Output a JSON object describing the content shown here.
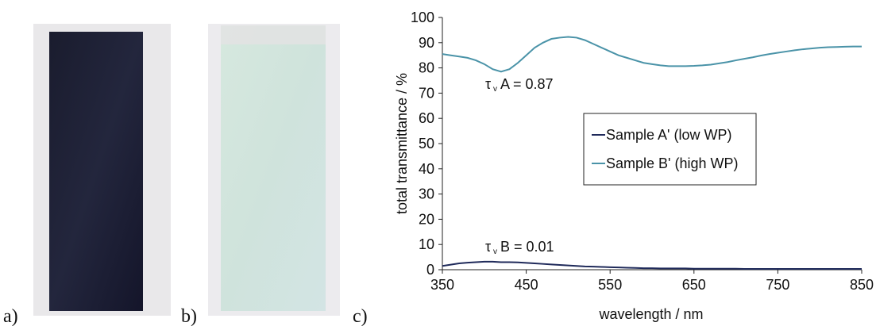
{
  "panel_labels": [
    "a)",
    "b)",
    "c)"
  ],
  "chart_data": {
    "type": "line",
    "xlabel": "wavelength / nm",
    "ylabel": "total transmittance / %",
    "x": [
      350,
      360,
      370,
      380,
      390,
      400,
      410,
      420,
      430,
      440,
      450,
      460,
      470,
      480,
      490,
      500,
      510,
      520,
      530,
      540,
      550,
      560,
      570,
      580,
      590,
      600,
      610,
      620,
      630,
      640,
      650,
      660,
      670,
      680,
      690,
      700,
      710,
      720,
      730,
      740,
      750,
      760,
      770,
      780,
      790,
      800,
      810,
      820,
      830,
      840,
      850
    ],
    "series": [
      {
        "name": "Sample A' (low WP)",
        "color": "#1f2a5a",
        "values": [
          1.5,
          2,
          2.5,
          2.8,
          3,
          3.2,
          3.2,
          3,
          3,
          2.9,
          2.7,
          2.5,
          2.3,
          2.1,
          1.9,
          1.7,
          1.5,
          1.3,
          1.2,
          1.1,
          1,
          0.9,
          0.8,
          0.7,
          0.6,
          0.6,
          0.5,
          0.5,
          0.5,
          0.5,
          0.4,
          0.4,
          0.4,
          0.4,
          0.4,
          0.4,
          0.3,
          0.3,
          0.3,
          0.3,
          0.3,
          0.3,
          0.3,
          0.3,
          0.3,
          0.3,
          0.3,
          0.3,
          0.3,
          0.3,
          0.3
        ]
      },
      {
        "name": "Sample B' (high WP)",
        "color": "#4a93a8",
        "values": [
          85.5,
          85,
          84.5,
          84,
          83,
          81.5,
          79.5,
          78.5,
          79.5,
          82,
          85,
          88,
          90,
          91.5,
          92,
          92.3,
          92,
          91,
          89.5,
          88,
          86.5,
          85,
          84,
          83,
          82,
          81.5,
          81,
          80.7,
          80.7,
          80.7,
          80.8,
          81,
          81.3,
          81.8,
          82.3,
          83,
          83.6,
          84.2,
          84.9,
          85.5,
          86,
          86.5,
          87,
          87.4,
          87.7,
          88,
          88.2,
          88.3,
          88.4,
          88.5,
          88.5
        ]
      }
    ],
    "annotations": [
      {
        "symbol": "τ",
        "sub": "v",
        "text": "A = 0.87"
      },
      {
        "symbol": "τ",
        "sub": "v",
        "text": "B = 0.01"
      }
    ],
    "xlim": [
      350,
      850
    ],
    "xticks": [
      350,
      450,
      550,
      650,
      750,
      850
    ],
    "ylim": [
      0,
      100
    ],
    "yticks": [
      0,
      10,
      20,
      30,
      40,
      50,
      60,
      70,
      80,
      90,
      100
    ]
  }
}
